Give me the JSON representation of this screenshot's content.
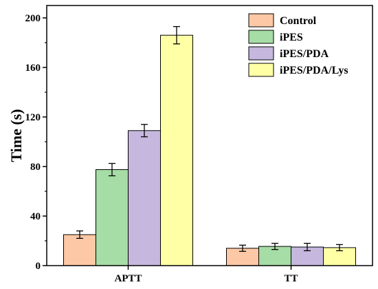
{
  "chart_data": {
    "type": "bar",
    "ylabel": "Time (s)",
    "xlabel": "",
    "categories": [
      "APTT",
      "TT"
    ],
    "ylim": [
      0,
      210
    ],
    "yticks": [
      0,
      40,
      80,
      120,
      160,
      200
    ],
    "legend_position": "top-right",
    "grid": false,
    "series": [
      {
        "name": "Control",
        "color": "#FDC8A6",
        "values": [
          25,
          14
        ],
        "errors": [
          3,
          2.5
        ]
      },
      {
        "name": "iPES",
        "color": "#A6DCA6",
        "values": [
          77.5,
          15.5
        ],
        "errors": [
          5,
          2.5
        ]
      },
      {
        "name": "iPES/PDA",
        "color": "#C5B7DE",
        "values": [
          109,
          15
        ],
        "errors": [
          5,
          3
        ]
      },
      {
        "name": "iPES/PDA/Lys",
        "color": "#FFFFA6",
        "values": [
          186,
          14.5
        ],
        "errors": [
          7,
          2.5
        ]
      }
    ]
  }
}
